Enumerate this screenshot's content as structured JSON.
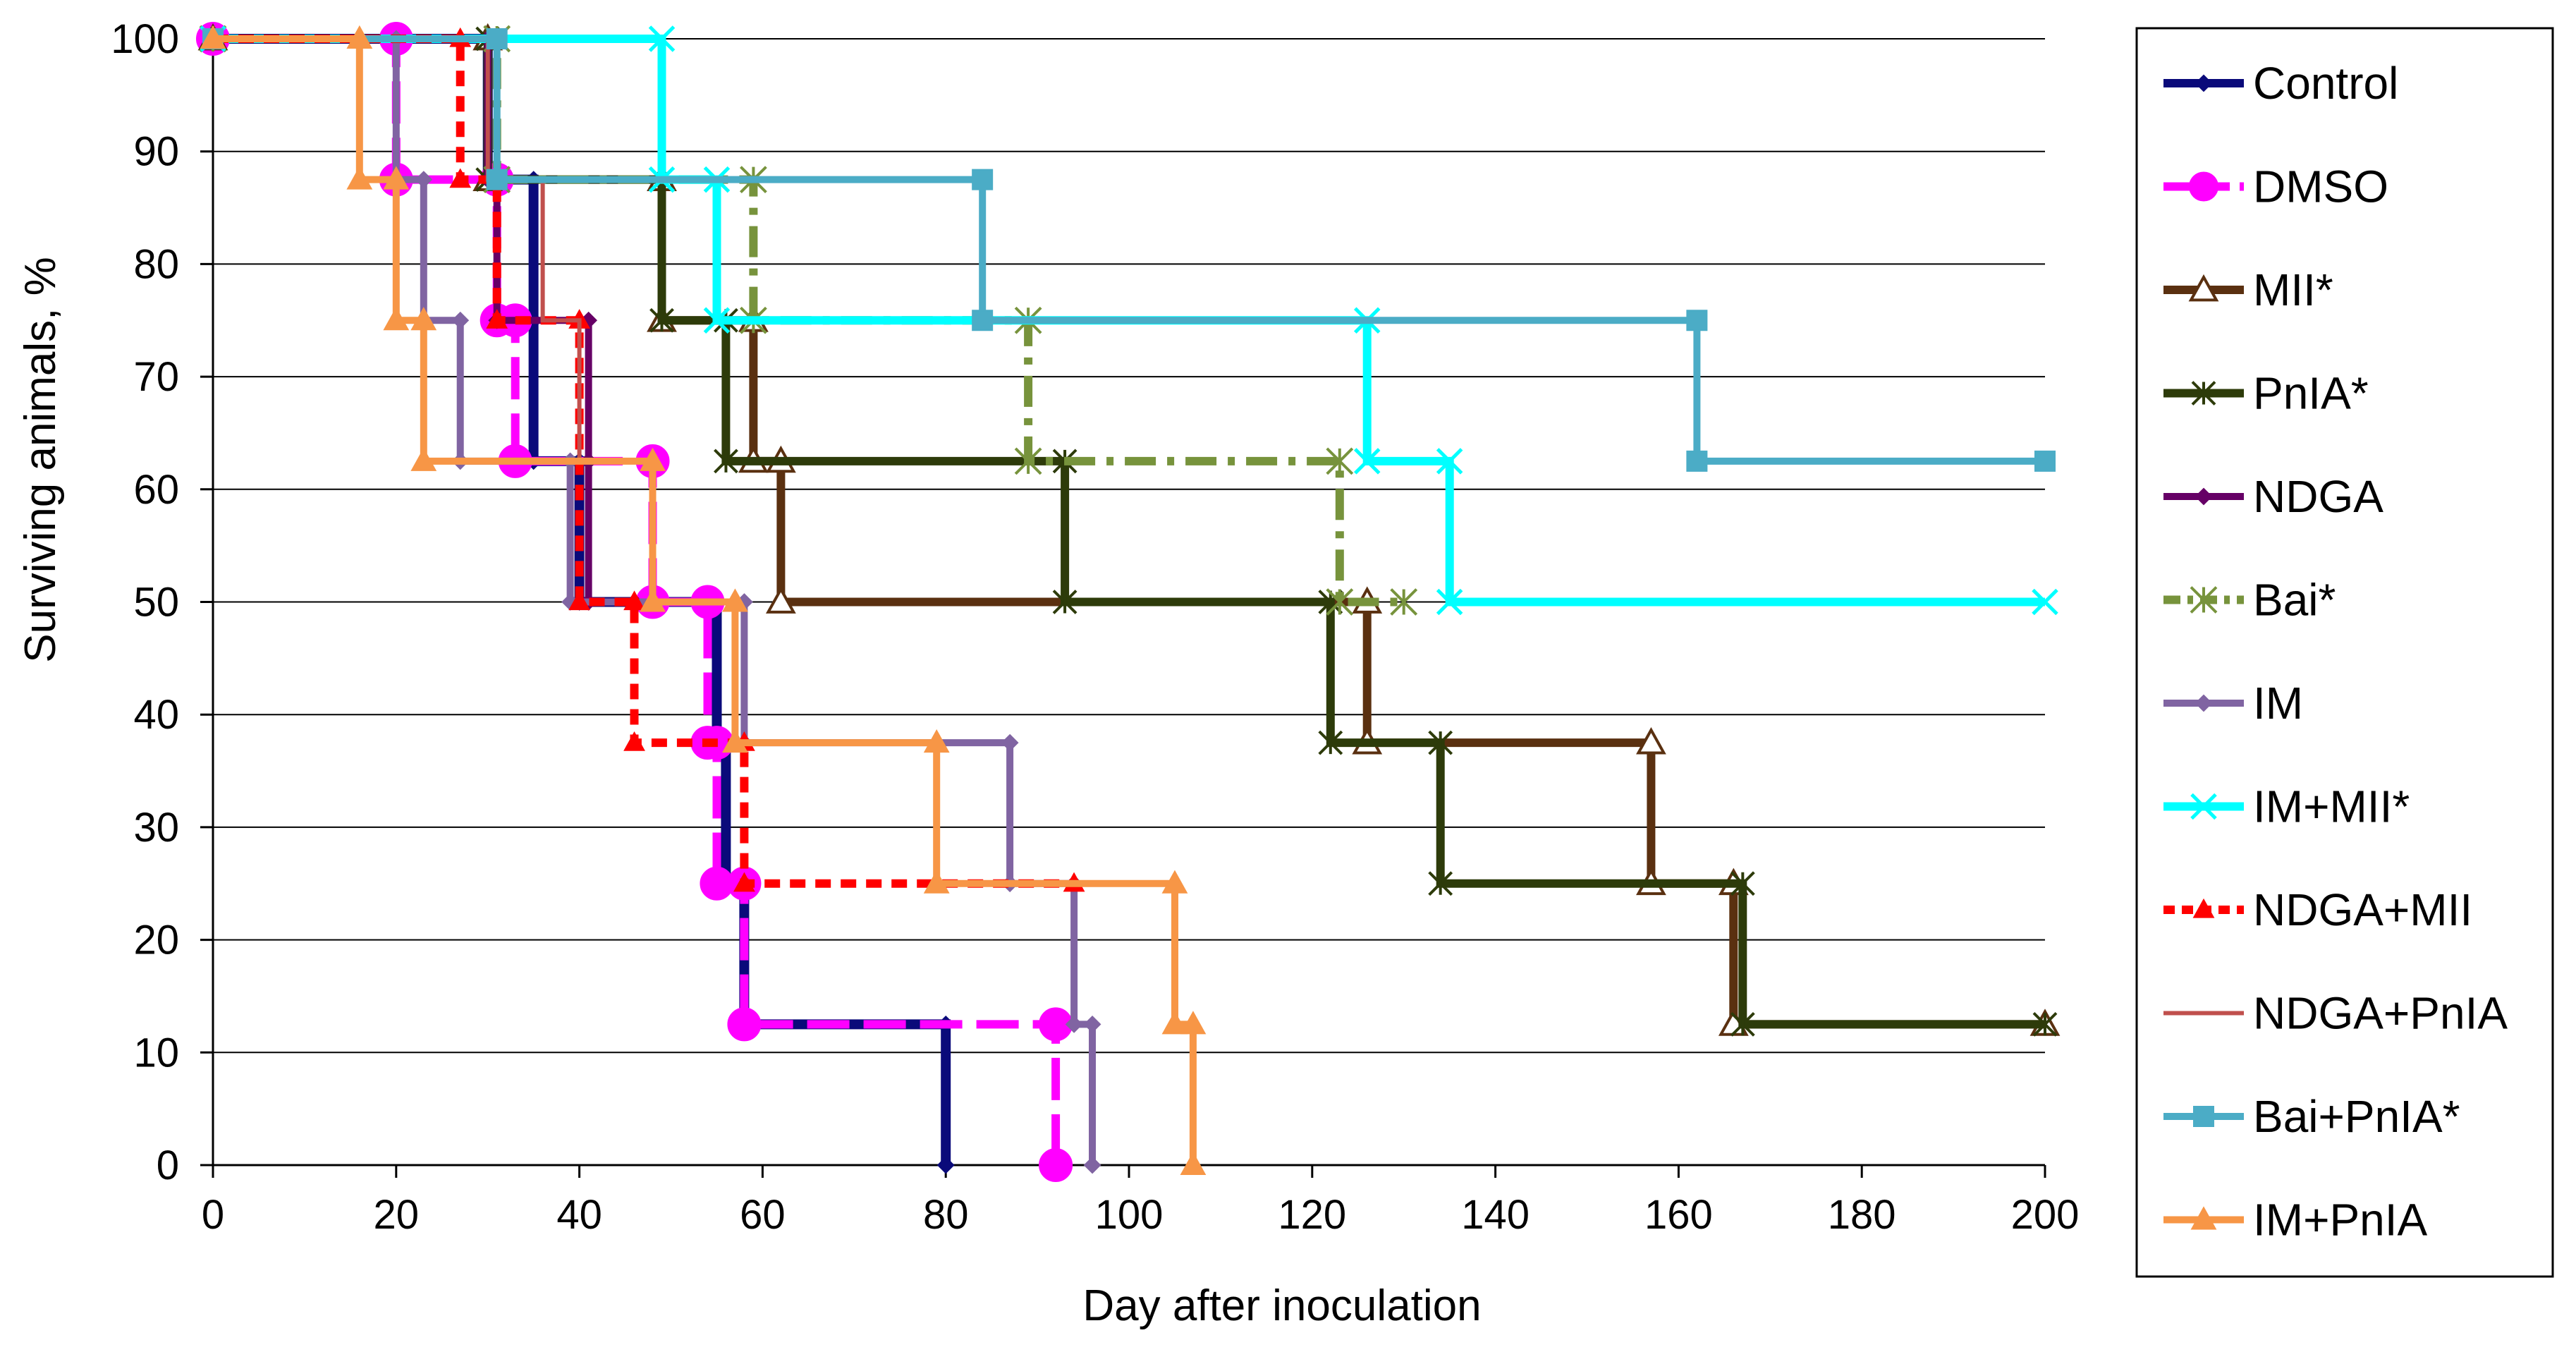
{
  "chart_data": {
    "type": "line",
    "step": true,
    "title": "",
    "xlabel": "Day after inoculation",
    "ylabel": "Surviving animals, %",
    "xlim": [
      0,
      200
    ],
    "ylim": [
      0,
      100
    ],
    "xticks": [
      0,
      20,
      40,
      60,
      80,
      100,
      120,
      140,
      160,
      180,
      200
    ],
    "yticks": [
      0,
      10,
      20,
      30,
      40,
      50,
      60,
      70,
      80,
      90,
      100
    ],
    "grid": "horizontal",
    "legend_position": "right",
    "series": [
      {
        "name": "Control",
        "color": "#0a0a7a",
        "dash": "solid",
        "marker": "diamond",
        "filled": true,
        "markerSize": 22,
        "width": 14,
        "points": [
          [
            0,
            100
          ],
          [
            30,
            100
          ],
          [
            30,
            87.5
          ],
          [
            35,
            87.5
          ],
          [
            35,
            75
          ],
          [
            35,
            75
          ],
          [
            35,
            62.5
          ],
          [
            40,
            62.5
          ],
          [
            40,
            50
          ],
          [
            55,
            50
          ],
          [
            55,
            37.5
          ],
          [
            56,
            37.5
          ],
          [
            56,
            25
          ],
          [
            58,
            25
          ],
          [
            58,
            12.5
          ],
          [
            80,
            12.5
          ],
          [
            80,
            0
          ]
        ]
      },
      {
        "name": "DMSO",
        "color": "#ff00ff",
        "dash": "long",
        "marker": "circle",
        "filled": true,
        "markerSize": 46,
        "width": 12,
        "points": [
          [
            0,
            100
          ],
          [
            20,
            100
          ],
          [
            20,
            87.5
          ],
          [
            31,
            87.5
          ],
          [
            31,
            75
          ],
          [
            33,
            75
          ],
          [
            33,
            62.5
          ],
          [
            48,
            62.5
          ],
          [
            48,
            50
          ],
          [
            54,
            50
          ],
          [
            54,
            37.5
          ],
          [
            55,
            37.5
          ],
          [
            55,
            25
          ],
          [
            58,
            25
          ],
          [
            58,
            12.5
          ],
          [
            92,
            12.5
          ],
          [
            92,
            0
          ]
        ]
      },
      {
        "name": "MII*",
        "color": "#5a3010",
        "dash": "solid",
        "marker": "triangle",
        "filled": false,
        "markerSize": 36,
        "width": 12,
        "points": [
          [
            0,
            100
          ],
          [
            30,
            100
          ],
          [
            30,
            87.5
          ],
          [
            49,
            87.5
          ],
          [
            49,
            75
          ],
          [
            59,
            75
          ],
          [
            59,
            62.5
          ],
          [
            62,
            62.5
          ],
          [
            62,
            50
          ],
          [
            126,
            50
          ],
          [
            126,
            37.5
          ],
          [
            157,
            37.5
          ],
          [
            157,
            25
          ],
          [
            166,
            25
          ],
          [
            166,
            12.5
          ],
          [
            200,
            12.5
          ]
        ]
      },
      {
        "name": "PnIA*",
        "color": "#2d3b0a",
        "dash": "solid",
        "marker": "asterisk",
        "filled": false,
        "markerSize": 32,
        "width": 12,
        "points": [
          [
            0,
            100
          ],
          [
            30,
            100
          ],
          [
            30,
            87.5
          ],
          [
            49,
            87.5
          ],
          [
            49,
            75
          ],
          [
            56,
            75
          ],
          [
            56,
            62.5
          ],
          [
            93,
            62.5
          ],
          [
            93,
            50
          ],
          [
            122,
            50
          ],
          [
            122,
            37.5
          ],
          [
            134,
            37.5
          ],
          [
            134,
            25
          ],
          [
            167,
            25
          ],
          [
            167,
            12.5
          ],
          [
            200,
            12.5
          ]
        ]
      },
      {
        "name": "NDGA",
        "color": "#660066",
        "dash": "solid",
        "marker": "diamond",
        "filled": true,
        "markerSize": 22,
        "width": 10,
        "points": [
          [
            0,
            100
          ],
          [
            30,
            100
          ],
          [
            30,
            87.5
          ],
          [
            31,
            87.5
          ],
          [
            31,
            75
          ],
          [
            41,
            75
          ],
          [
            41,
            62.5
          ],
          [
            41,
            62.5
          ],
          [
            41,
            50
          ],
          [
            46,
            50
          ]
        ]
      },
      {
        "name": "Bai*",
        "color": "#77933c",
        "dash": "dashdot",
        "marker": "asterisk",
        "filled": false,
        "markerSize": 36,
        "width": 12,
        "points": [
          [
            0,
            100
          ],
          [
            31,
            100
          ],
          [
            31,
            87.5
          ],
          [
            59,
            87.5
          ],
          [
            59,
            75
          ],
          [
            89,
            75
          ],
          [
            89,
            62.5
          ],
          [
            123,
            62.5
          ],
          [
            123,
            50
          ],
          [
            130,
            50
          ]
        ]
      },
      {
        "name": "IM",
        "color": "#8064a2",
        "dash": "solid",
        "marker": "diamond",
        "filled": true,
        "markerSize": 22,
        "width": 10,
        "points": [
          [
            0,
            100
          ],
          [
            20,
            100
          ],
          [
            20,
            87.5
          ],
          [
            23,
            87.5
          ],
          [
            23,
            75
          ],
          [
            27,
            75
          ],
          [
            27,
            62.5
          ],
          [
            39,
            62.5
          ],
          [
            39,
            50
          ],
          [
            58,
            50
          ],
          [
            58,
            37.5
          ],
          [
            87,
            37.5
          ],
          [
            87,
            25
          ],
          [
            94,
            25
          ],
          [
            94,
            12.5
          ],
          [
            96,
            12.5
          ],
          [
            96,
            0
          ]
        ]
      },
      {
        "name": "IM+MII*",
        "color": "#00ffff",
        "dash": "solid",
        "marker": "x",
        "filled": false,
        "markerSize": 34,
        "width": 12,
        "points": [
          [
            0,
            100
          ],
          [
            49,
            100
          ],
          [
            49,
            87.5
          ],
          [
            55,
            87.5
          ],
          [
            55,
            75
          ],
          [
            126,
            75
          ],
          [
            126,
            62.5
          ],
          [
            135,
            62.5
          ],
          [
            135,
            50
          ],
          [
            200,
            50
          ]
        ]
      },
      {
        "name": "NDGA+MII",
        "color": "#ff0000",
        "dash": "short",
        "marker": "triangle",
        "filled": true,
        "markerSize": 24,
        "width": 12,
        "points": [
          [
            0,
            100
          ],
          [
            27,
            100
          ],
          [
            27,
            87.5
          ],
          [
            31,
            87.5
          ],
          [
            31,
            75
          ],
          [
            40,
            75
          ],
          [
            40,
            50
          ],
          [
            46,
            50
          ],
          [
            46,
            37.5
          ],
          [
            58,
            37.5
          ],
          [
            58,
            25
          ],
          [
            94,
            25
          ]
        ]
      },
      {
        "name": "NDGA+PnIA",
        "color": "#c0504d",
        "dash": "solid",
        "marker": "none",
        "filled": false,
        "markerSize": 0,
        "width": 6,
        "points": [
          [
            0,
            100
          ],
          [
            30,
            100
          ],
          [
            30,
            87.5
          ],
          [
            36,
            87.5
          ],
          [
            36,
            75
          ],
          [
            40,
            75
          ],
          [
            40,
            62.5
          ],
          [
            48,
            62.5
          ]
        ]
      },
      {
        "name": "Bai+PnIA*",
        "color": "#4bacc6",
        "dash": "solid",
        "marker": "square",
        "filled": true,
        "markerSize": 28,
        "width": 10,
        "points": [
          [
            0,
            100
          ],
          [
            31,
            100
          ],
          [
            31,
            87.5
          ],
          [
            84,
            87.5
          ],
          [
            84,
            75
          ],
          [
            162,
            75
          ],
          [
            162,
            62.5
          ],
          [
            200,
            62.5
          ]
        ]
      },
      {
        "name": "IM+PnIA",
        "color": "#f79646",
        "dash": "solid",
        "marker": "triangle",
        "filled": true,
        "markerSize": 30,
        "width": 10,
        "points": [
          [
            0,
            100
          ],
          [
            16,
            100
          ],
          [
            16,
            87.5
          ],
          [
            20,
            87.5
          ],
          [
            20,
            75
          ],
          [
            23,
            75
          ],
          [
            23,
            62.5
          ],
          [
            48,
            62.5
          ],
          [
            48,
            50
          ],
          [
            57,
            50
          ],
          [
            57,
            37.5
          ],
          [
            79,
            37.5
          ],
          [
            79,
            25
          ],
          [
            105,
            25
          ],
          [
            105,
            12.5
          ],
          [
            107,
            12.5
          ],
          [
            107,
            0
          ]
        ]
      }
    ]
  }
}
